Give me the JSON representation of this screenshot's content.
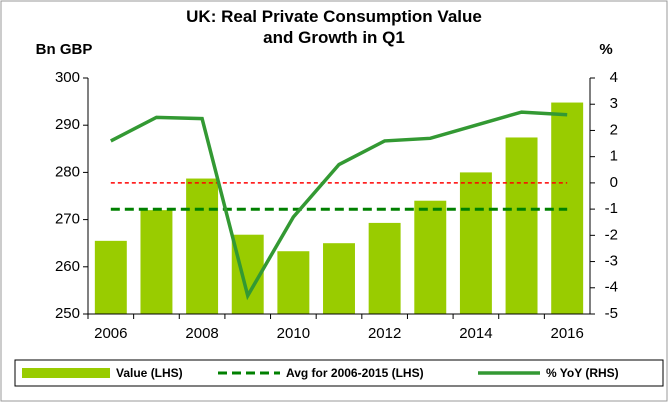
{
  "chart_data": {
    "type": "bar-line",
    "title": "UK: Real Private Consumption Value and Growth in Q1",
    "ylabel": "Bn GBP",
    "y2label": "%",
    "x": [
      2006,
      2007,
      2008,
      2009,
      2010,
      2011,
      2012,
      2013,
      2014,
      2015,
      2016
    ],
    "xlim": [
      2005.5,
      2016.5
    ],
    "xticks": [
      2006,
      2008,
      2010,
      2012,
      2014,
      2016
    ],
    "ylim": [
      250,
      300
    ],
    "yticks": [
      250,
      260,
      270,
      280,
      290,
      300
    ],
    "y2lim": [
      -5,
      4
    ],
    "y2ticks": [
      -5,
      -4,
      -3,
      -2,
      -1,
      0,
      1,
      2,
      3,
      4
    ],
    "series": [
      {
        "name": "Value (LHS)",
        "kind": "bar",
        "color": "#99cc00",
        "values": [
          265.5,
          272,
          278.7,
          266.8,
          263.3,
          265,
          269.3,
          274,
          280,
          287.4,
          294.8
        ]
      },
      {
        "name": "Avg for 2006-2015 (LHS)",
        "kind": "hline",
        "color": "#008000",
        "value": 272.2
      },
      {
        "name": "% YoY (RHS)",
        "kind": "line",
        "axis": "y2",
        "color": "#339933",
        "values": [
          1.6,
          2.5,
          2.45,
          -4.3,
          -1.3,
          0.7,
          1.6,
          1.7,
          2.2,
          2.7,
          2.6
        ]
      }
    ],
    "zero_line_color": "#ff0000"
  }
}
